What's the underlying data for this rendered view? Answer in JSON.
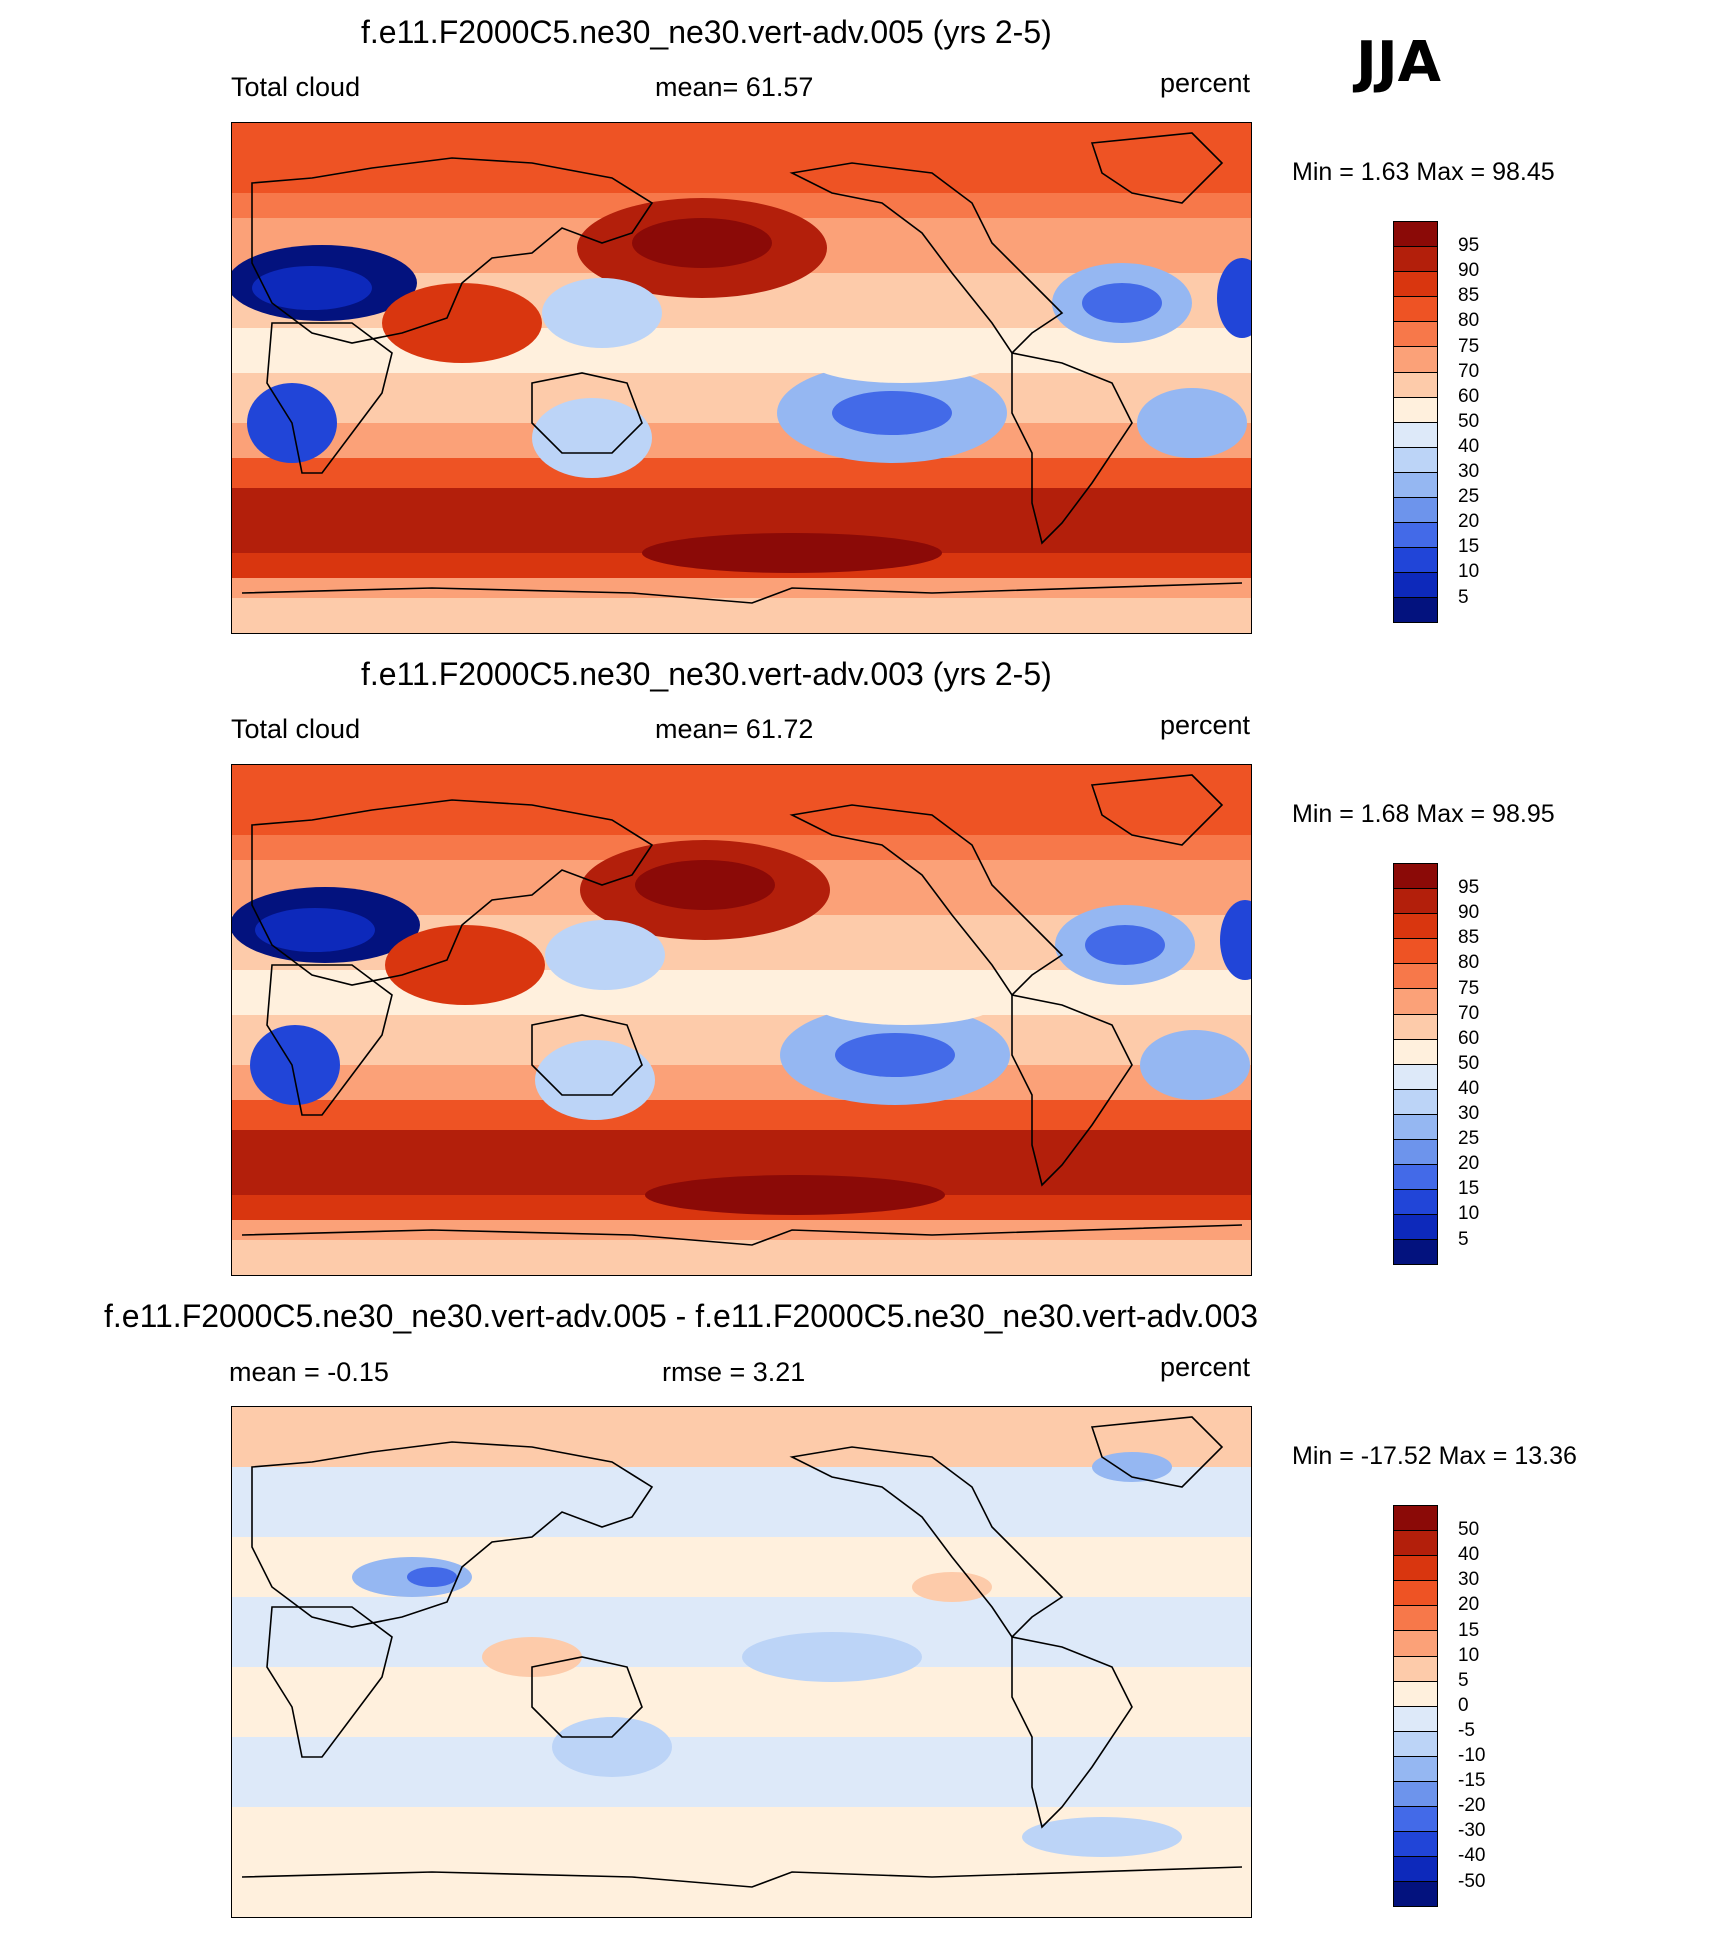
{
  "season": "JJA",
  "panels": [
    {
      "title": "f.e11.F2000C5.ne30_ne30.vert-adv.005 (yrs 2-5)",
      "left_label": "Total cloud",
      "center_label": "mean=  61.57",
      "right_label": "percent",
      "minmax": "Min =   1.63 Max =  98.45",
      "kind": "abs"
    },
    {
      "title": "f.e11.F2000C5.ne30_ne30.vert-adv.003 (yrs 2-5)",
      "left_label": "Total cloud",
      "center_label": "mean=  61.72",
      "right_label": "percent",
      "minmax": "Min =   1.68 Max =  98.95",
      "kind": "abs"
    },
    {
      "title": "f.e11.F2000C5.ne30_ne30.vert-adv.005 - f.e11.F2000C5.ne30_ne30.vert-adv.003",
      "left_label": "mean =  -0.15",
      "center_label": "rmse =   3.21",
      "right_label": "percent",
      "minmax": "Min = -17.52 Max =  13.36",
      "kind": "diff"
    }
  ],
  "colorbars": {
    "abs_labels": [
      "95",
      "90",
      "85",
      "80",
      "75",
      "70",
      "60",
      "50",
      "40",
      "30",
      "25",
      "20",
      "15",
      "10",
      "5"
    ],
    "diff_labels": [
      "50",
      "40",
      "30",
      "20",
      "15",
      "10",
      "5",
      "0",
      "-5",
      "-10",
      "-15",
      "-20",
      "-30",
      "-40",
      "-50"
    ],
    "colors_top_to_bottom": [
      "#8b0a07",
      "#b31f0b",
      "#d9360f",
      "#ee5324",
      "#f7784a",
      "#fba178",
      "#fdcbaa",
      "#fff0dd",
      "#dde9f9",
      "#bcd4f7",
      "#95b7f2",
      "#6d94ec",
      "#436ae8",
      "#2145d8",
      "#0d29bb",
      "#03127e"
    ]
  }
}
